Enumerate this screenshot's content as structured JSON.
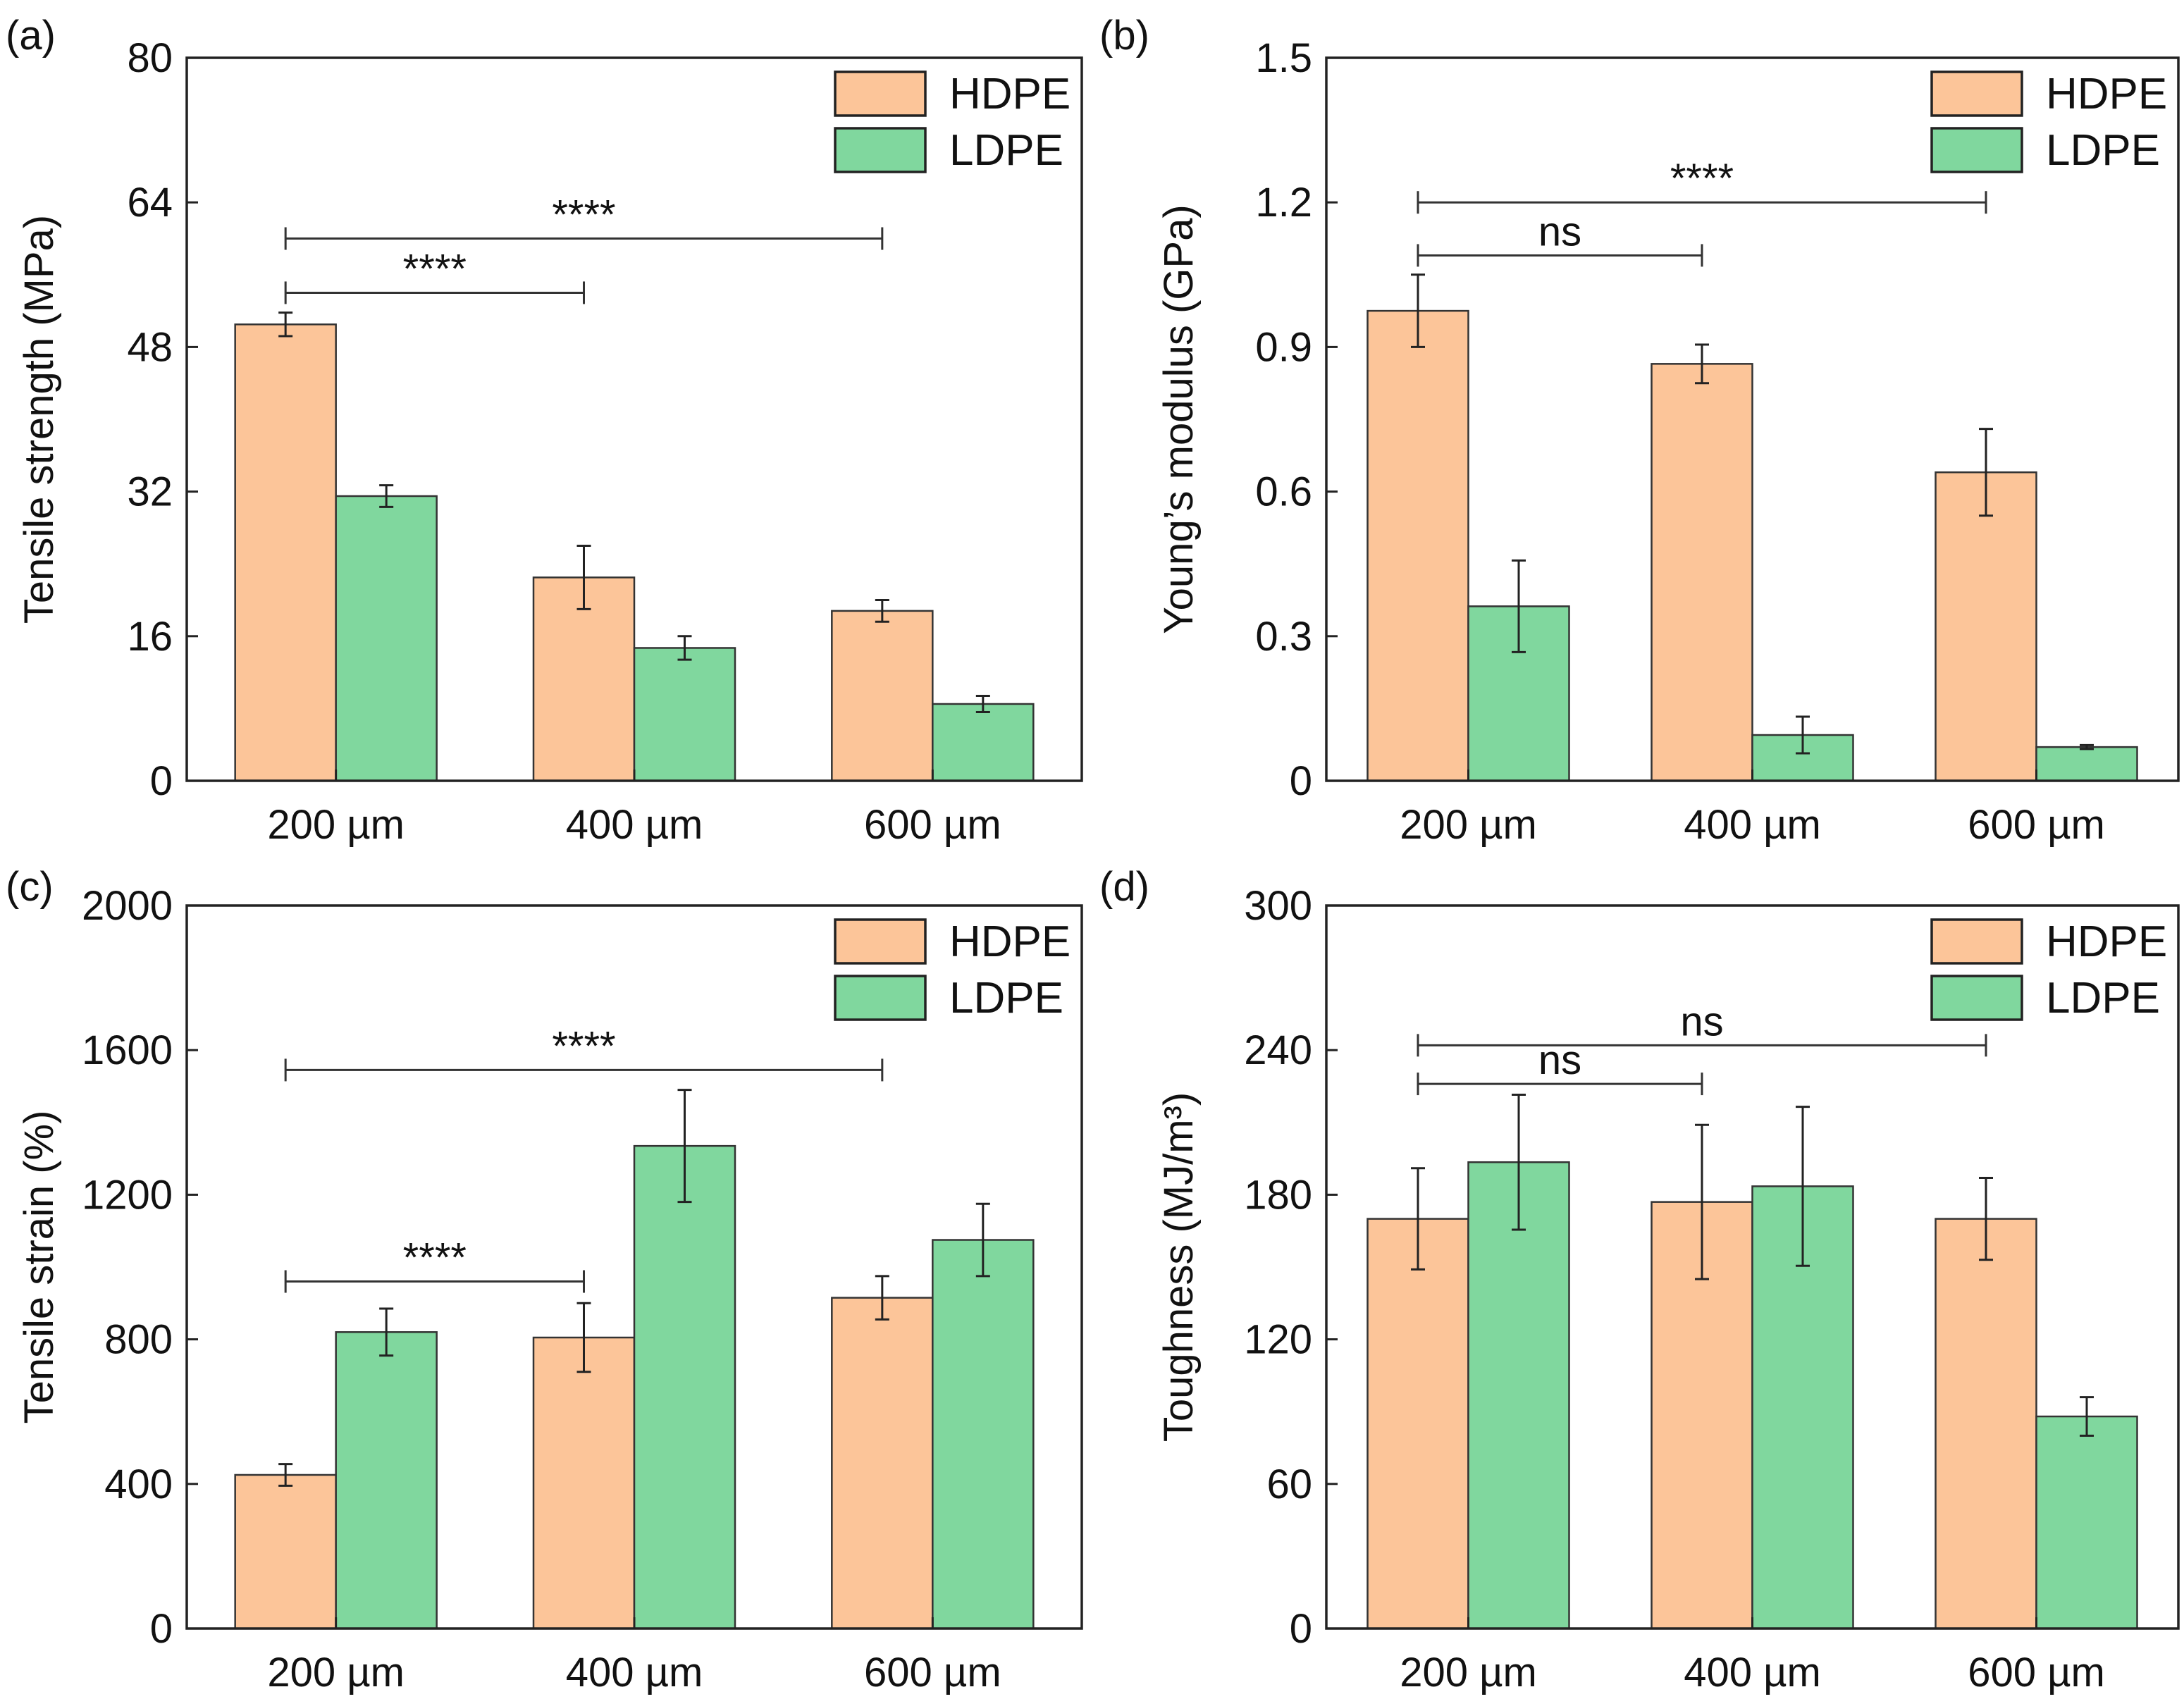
{
  "chart_data": [
    {
      "type": "bar",
      "panel": "(a)",
      "categories": [
        "200 µm",
        "400 µm",
        "600 µm"
      ],
      "series": [
        {
          "name": "HDPE",
          "color": "#fcc599",
          "values": [
            50.5,
            22.5,
            18.8
          ],
          "errors": [
            1.3,
            3.5,
            1.2
          ]
        },
        {
          "name": "LDPE",
          "color": "#80d79e",
          "values": [
            31.5,
            14.7,
            8.5
          ],
          "errors": [
            1.2,
            1.3,
            0.9
          ]
        }
      ],
      "ylabel": "Tensile strength (MPa)",
      "ylim": [
        0,
        80
      ],
      "yticks": [
        0,
        16,
        32,
        48,
        64,
        80
      ],
      "ytick_labels": [
        "0",
        "16",
        "32",
        "48",
        "64",
        "80"
      ],
      "significance": [
        {
          "from": 0,
          "to": 1,
          "label": "****",
          "y": 54
        },
        {
          "from": 0,
          "to": 2,
          "label": "****",
          "y": 60
        }
      ],
      "legend_position": "top-right"
    },
    {
      "type": "bar",
      "panel": "(b)",
      "categories": [
        "200 µm",
        "400 µm",
        "600 µm"
      ],
      "series": [
        {
          "name": "HDPE",
          "color": "#fcc599",
          "values": [
            0.975,
            0.865,
            0.64
          ],
          "errors": [
            0.075,
            0.04,
            0.09
          ]
        },
        {
          "name": "LDPE",
          "color": "#80d79e",
          "values": [
            0.362,
            0.095,
            0.07
          ],
          "errors": [
            0.095,
            0.038,
            0.004
          ]
        }
      ],
      "ylabel": "Young’s modulus (GPa)",
      "ylim": [
        0,
        1.5
      ],
      "yticks": [
        0,
        0.3,
        0.6,
        0.9,
        1.2,
        1.5
      ],
      "ytick_labels": [
        "0",
        "0.3",
        "0.6",
        "0.9",
        "1.2",
        "1.5"
      ],
      "significance": [
        {
          "from": 0,
          "to": 1,
          "label": "ns",
          "y": 1.09
        },
        {
          "from": 0,
          "to": 2,
          "label": "****",
          "y": 1.2
        }
      ],
      "legend_position": "top-right"
    },
    {
      "type": "bar",
      "panel": "(c)",
      "categories": [
        "200 µm",
        "400 µm",
        "600 µm"
      ],
      "series": [
        {
          "name": "HDPE",
          "color": "#fcc599",
          "values": [
            425,
            805,
            915
          ],
          "errors": [
            30,
            95,
            60
          ]
        },
        {
          "name": "LDPE",
          "color": "#80d79e",
          "values": [
            820,
            1335,
            1075
          ],
          "errors": [
            65,
            155,
            100
          ]
        }
      ],
      "ylabel": "Tensile strain (%)",
      "ylim": [
        0,
        2000
      ],
      "yticks": [
        0,
        400,
        800,
        1200,
        1600,
        2000
      ],
      "ytick_labels": [
        "0",
        "400",
        "800",
        "1200",
        "1600",
        "2000"
      ],
      "significance": [
        {
          "from": 0,
          "to": 1,
          "label": "****",
          "y": 960
        },
        {
          "from": 0,
          "to": 2,
          "label": "****",
          "y": 1545
        }
      ],
      "legend_position": "top-right"
    },
    {
      "type": "bar",
      "panel": "(d)",
      "categories": [
        "200 µm",
        "400 µm",
        "600 µm"
      ],
      "series": [
        {
          "name": "HDPE",
          "color": "#fcc599",
          "values": [
            170,
            177,
            170
          ],
          "errors": [
            21,
            32,
            17
          ]
        },
        {
          "name": "LDPE",
          "color": "#80d79e",
          "values": [
            193.5,
            183.5,
            88
          ],
          "errors": [
            28,
            33,
            8
          ]
        }
      ],
      "ylabel": "Toughness (MJ/m³)",
      "ylim": [
        0,
        300
      ],
      "yticks": [
        0,
        60,
        120,
        180,
        240,
        300
      ],
      "ytick_labels": [
        "0",
        "60",
        "120",
        "180",
        "240",
        "300"
      ],
      "significance": [
        {
          "from": 0,
          "to": 1,
          "label": "ns",
          "y": 226
        },
        {
          "from": 0,
          "to": 2,
          "label": "ns",
          "y": 242
        }
      ],
      "legend_position": "top-right"
    }
  ]
}
